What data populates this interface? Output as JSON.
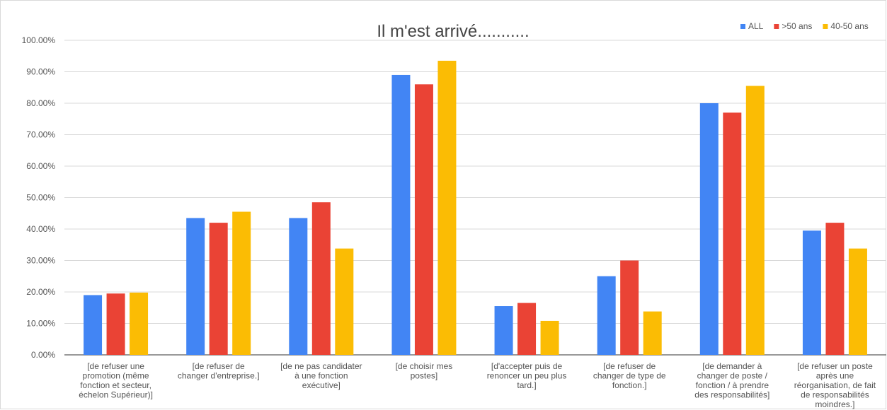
{
  "chart_data": {
    "type": "bar",
    "title": "Il m'est arrivé...........",
    "xlabel": "",
    "ylabel": "",
    "ylim": [
      0,
      1
    ],
    "yticks": [
      "0.00%",
      "10.00%",
      "20.00%",
      "30.00%",
      "40.00%",
      "50.00%",
      "60.00%",
      "70.00%",
      "80.00%",
      "90.00%",
      "100.00%"
    ],
    "grid": true,
    "legend_position": "top-right",
    "categories": [
      [
        "[de refuser une",
        "promotion (même",
        "fonction et secteur,",
        "échelon Supérieur)]"
      ],
      [
        "[de refuser de",
        "changer d'entreprise.]"
      ],
      [
        "[de ne pas candidater",
        "à une fonction",
        "exécutive]"
      ],
      [
        "[de choisir mes",
        "postes]"
      ],
      [
        "[d'accepter puis de",
        "renoncer un peu plus",
        "tard.]"
      ],
      [
        "[de refuser de",
        "changer de type de",
        "fonction.]"
      ],
      [
        "[de demander à",
        "changer de poste /",
        "fonction / à prendre",
        "des responsabilités]"
      ],
      [
        "[de refuser un poste",
        "après une",
        "réorganisation, de fait",
        "de responsabilités",
        "moindres.]"
      ]
    ],
    "series": [
      {
        "name": "ALL",
        "color": "#4285f4",
        "values": [
          0.19,
          0.435,
          0.435,
          0.89,
          0.155,
          0.25,
          0.8,
          0.395
        ]
      },
      {
        "name": ">50 ans",
        "color": "#ea4335",
        "values": [
          0.195,
          0.42,
          0.485,
          0.86,
          0.165,
          0.3,
          0.77,
          0.42
        ]
      },
      {
        "name": "40-50 ans",
        "color": "#fbbc04",
        "values": [
          0.198,
          0.455,
          0.338,
          0.935,
          0.108,
          0.138,
          0.855,
          0.338
        ]
      }
    ]
  }
}
